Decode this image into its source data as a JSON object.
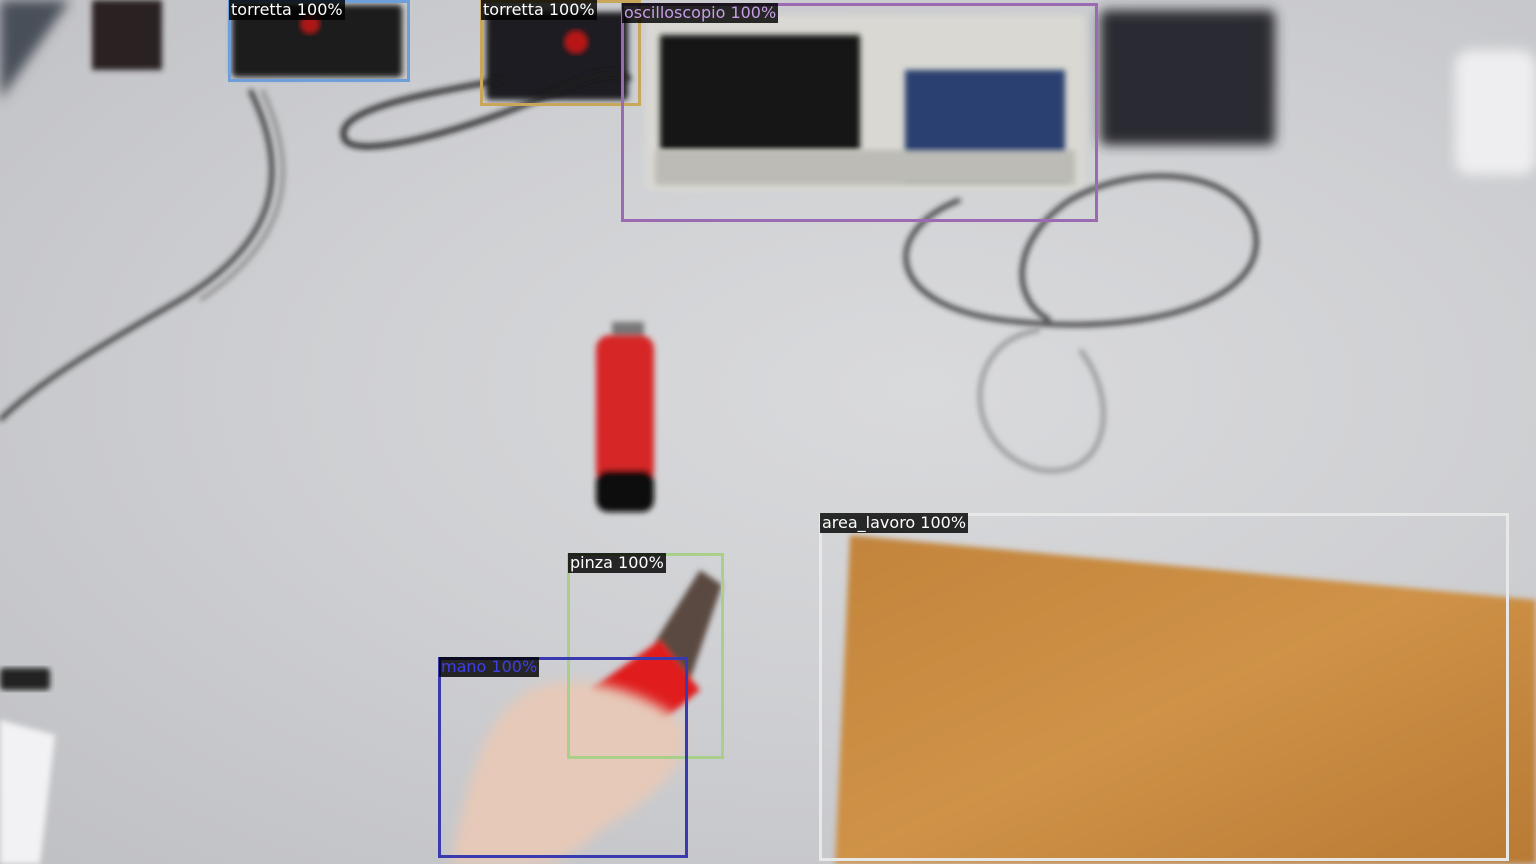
{
  "detections": [
    {
      "label": "torretta 100%",
      "color": "#6f9fd8",
      "text_color": "#ffffff"
    },
    {
      "label": "torretta 100%",
      "color": "#c8a65a",
      "text_color": "#ffffff"
    },
    {
      "label": "oscilloscopio 100%",
      "color": "#9a6bb0",
      "text_color": "#c89ee6"
    },
    {
      "label": "area_lavoro 100%",
      "color": "#e8e8e8",
      "text_color": "#ffffff"
    },
    {
      "label": "pinza 100%",
      "color": "#a8d08a",
      "text_color": "#ffffff"
    },
    {
      "label": "mano 100%",
      "color": "#3a3ab0",
      "text_color": "#3f3fe6"
    }
  ],
  "colors": {
    "table": "#d2d3d6",
    "wood": "#c98b3a",
    "cutter": "#d42a2a"
  }
}
